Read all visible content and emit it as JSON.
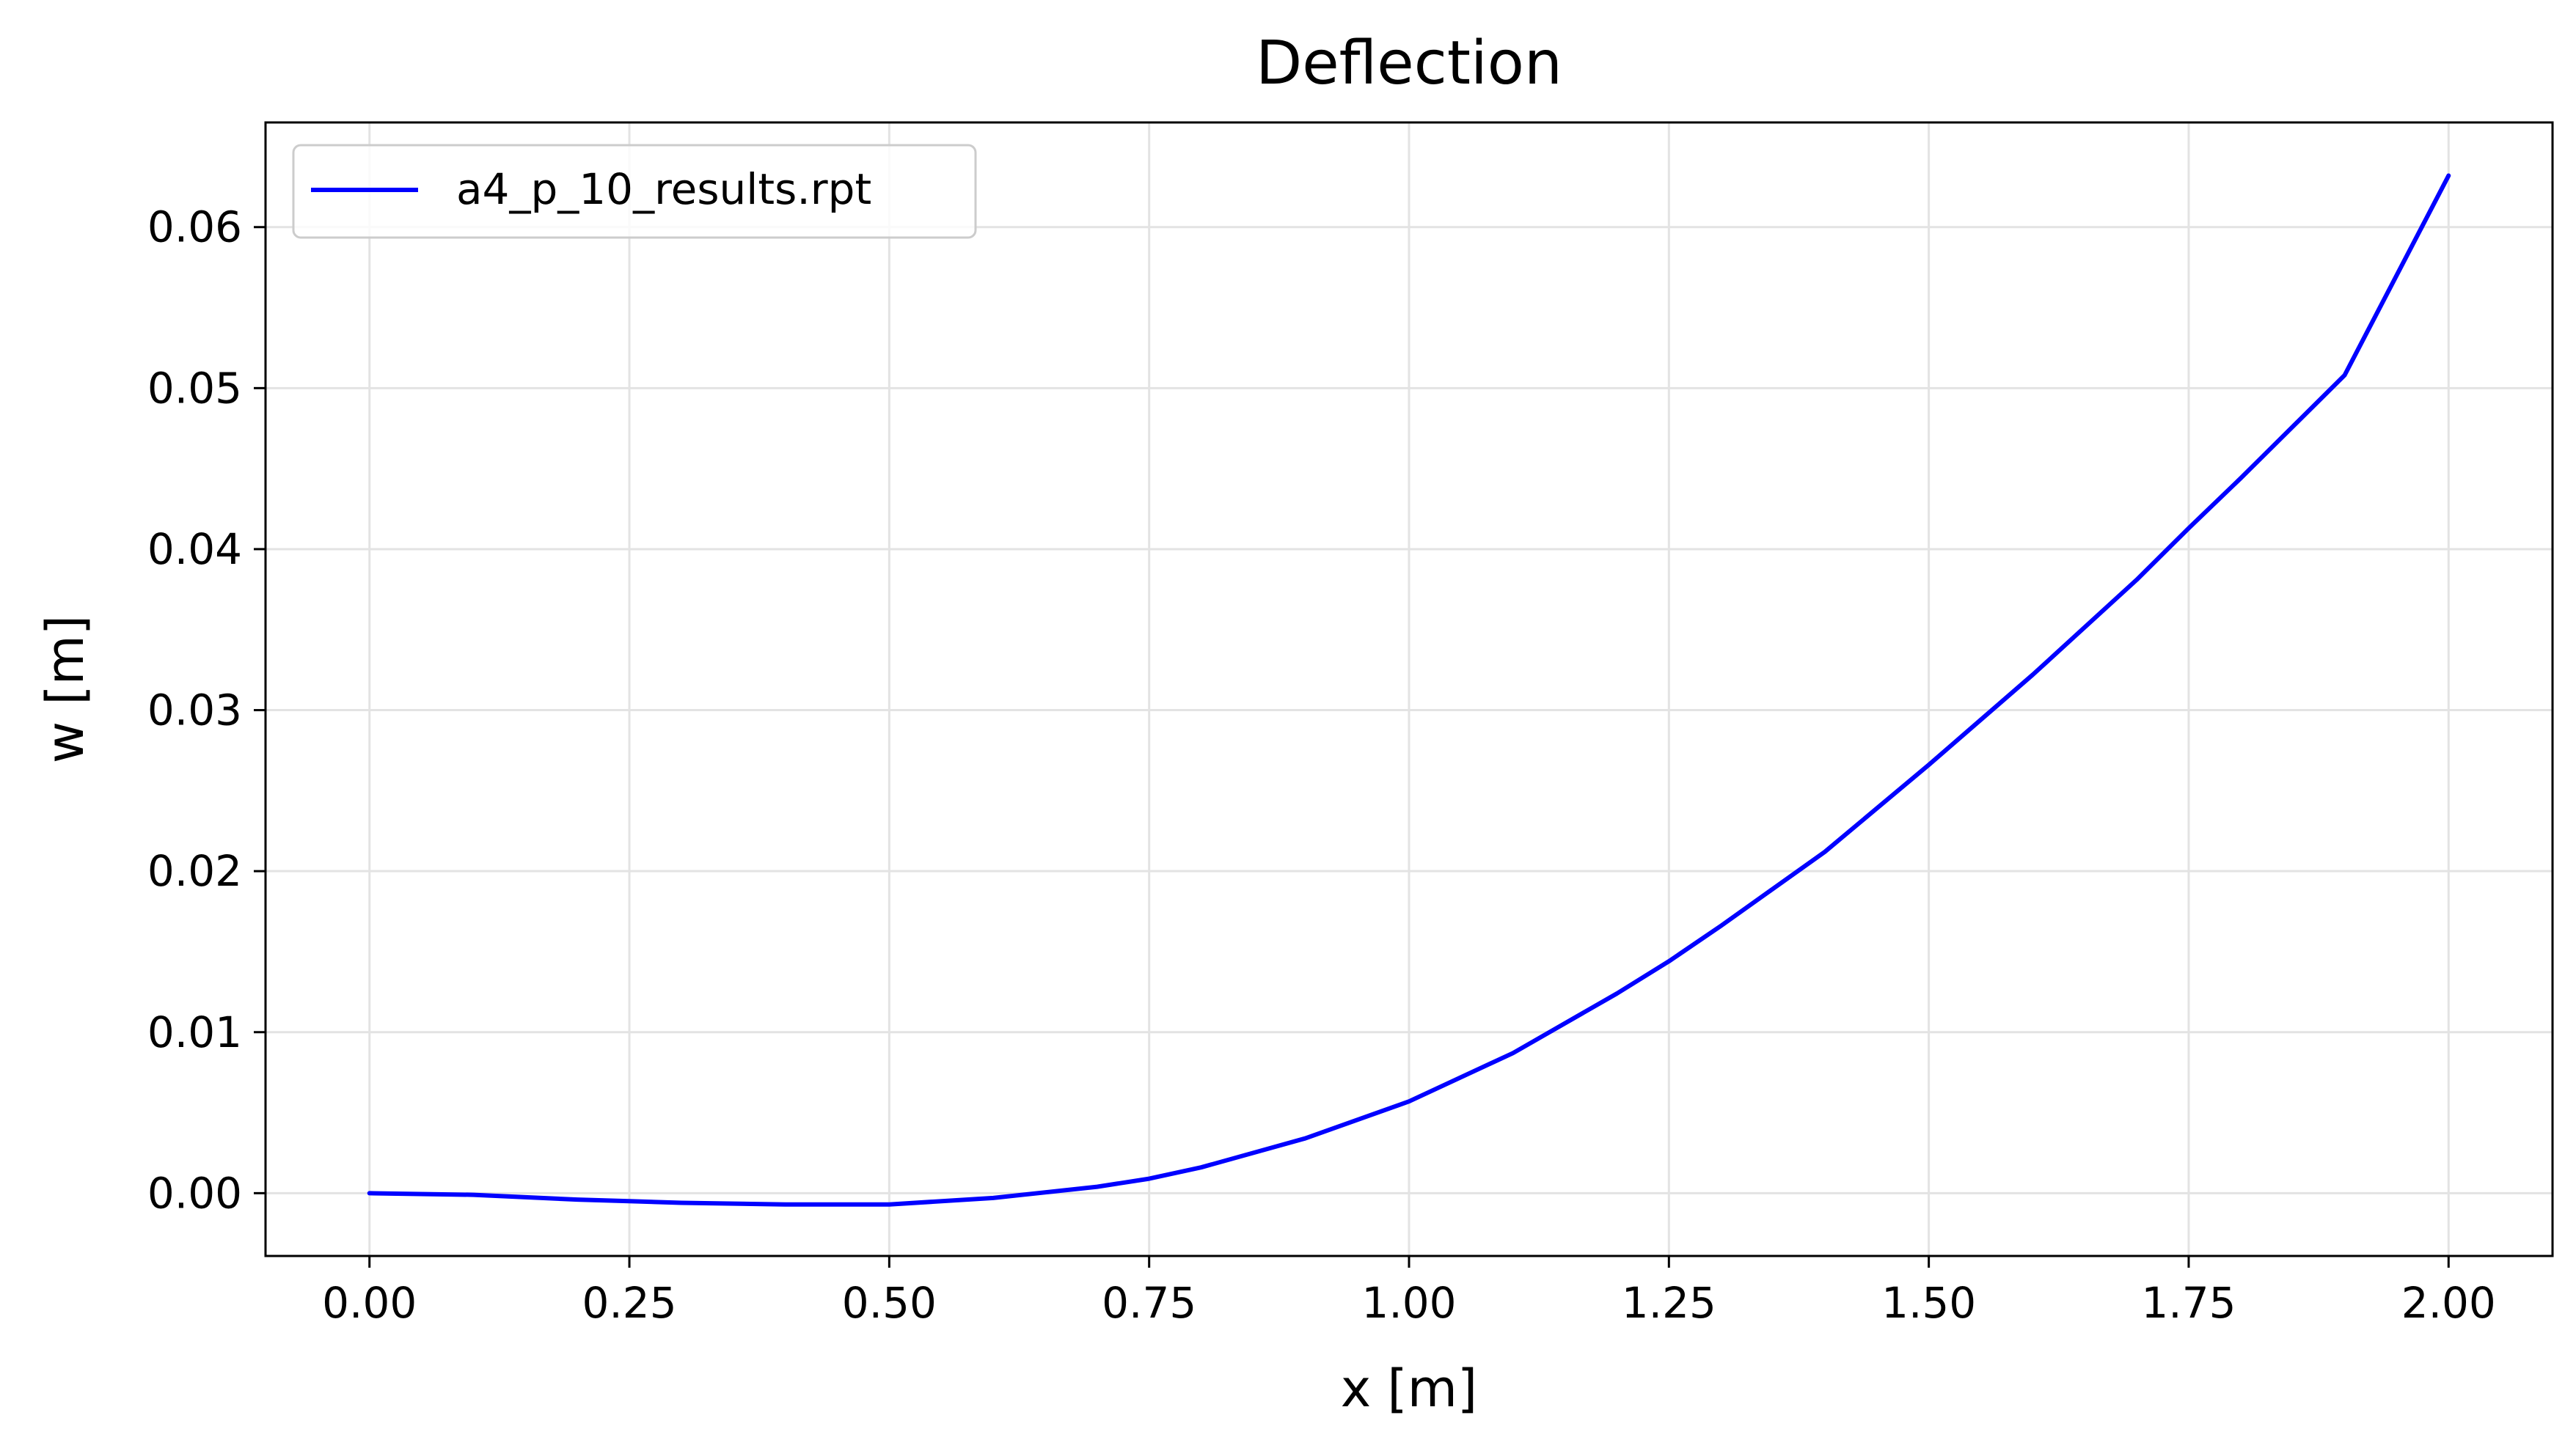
{
  "chart_data": {
    "type": "line",
    "title": "Deflection",
    "xlabel": "x [m]",
    "ylabel": "w [m]",
    "xlim": [
      -0.1,
      2.1
    ],
    "ylim": [
      -0.0039,
      0.0665
    ],
    "x_ticks": [
      0.0,
      0.25,
      0.5,
      0.75,
      1.0,
      1.25,
      1.5,
      1.75,
      2.0
    ],
    "x_tick_labels": [
      "0.00",
      "0.25",
      "0.50",
      "0.75",
      "1.00",
      "1.25",
      "1.50",
      "1.75",
      "2.00"
    ],
    "y_ticks": [
      0.0,
      0.01,
      0.02,
      0.03,
      0.04,
      0.05,
      0.06
    ],
    "y_tick_labels": [
      "0.00",
      "0.01",
      "0.02",
      "0.03",
      "0.04",
      "0.05",
      "0.06"
    ],
    "grid": true,
    "legend_position": "top-left",
    "series": [
      {
        "name": "a4_p_10_results.rpt",
        "color": "#0000ff",
        "x": [
          0.0,
          0.1,
          0.2,
          0.25,
          0.3,
          0.4,
          0.45,
          0.5,
          0.6,
          0.7,
          0.75,
          0.8,
          0.9,
          1.0,
          1.1,
          1.2,
          1.25,
          1.3,
          1.4,
          1.5,
          1.6,
          1.7,
          1.75,
          1.8,
          1.9,
          2.0
        ],
        "y": [
          0.0,
          -0.0001,
          -0.0004,
          -0.0005,
          -0.0006,
          -0.0007,
          -0.0007,
          -0.0007,
          -0.0003,
          0.0004,
          0.0009,
          0.0016,
          0.0034,
          0.0057,
          0.0087,
          0.0124,
          0.0144,
          0.0166,
          0.0212,
          0.0266,
          0.0322,
          0.0381,
          0.0413,
          0.0444,
          0.0508,
          0.0632
        ]
      }
    ]
  }
}
